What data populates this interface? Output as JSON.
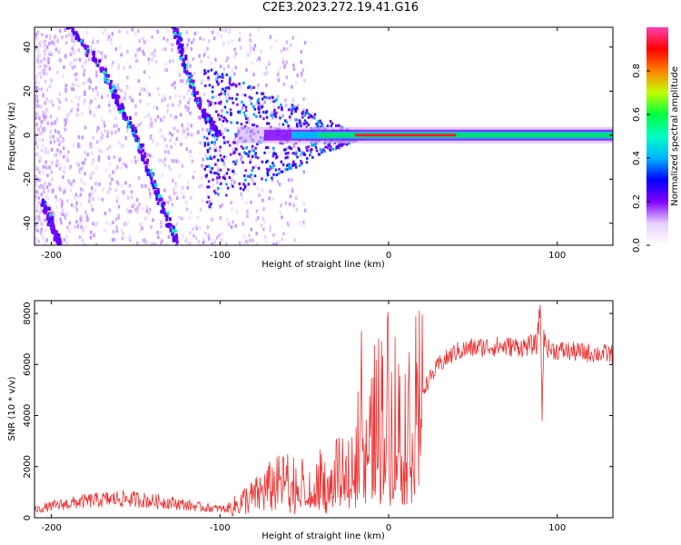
{
  "title": "C2E3.2023.272.19.41.G16",
  "chart_data": [
    {
      "type": "heatmap",
      "xlabel": "Height of straight line (km)",
      "ylabel": "Frequency (Hz)",
      "xlim": [
        -210,
        133
      ],
      "ylim": [
        -50,
        49
      ],
      "xticks": [
        -200,
        -100,
        0,
        100
      ],
      "yticks": [
        -40,
        -20,
        0,
        20,
        40
      ],
      "colorbar": {
        "label": "Normalized spectral amplitude",
        "range": [
          0,
          1
        ],
        "ticks": [
          "0.0",
          "0.2",
          "0.4",
          "0.6",
          "0.8"
        ],
        "colormap": [
          "#ffffff",
          "#e8d0ff",
          "#8000ff",
          "#0000ff",
          "#00b4ff",
          "#00ffc0",
          "#00ff40",
          "#c0ff00",
          "#ff8000",
          "#ff0000",
          "#ff40b0"
        ]
      },
      "features": [
        {
          "name": "carrier",
          "freq_hz": 0,
          "x_start": -90,
          "x_end": 133,
          "peak_amplitude": 0.9,
          "peak_x_range": [
            -20,
            40
          ]
        },
        {
          "name": "trace-1",
          "points": [
            [
              -190,
              50
            ],
            [
              -170,
              30
            ],
            [
              -160,
              15
            ],
            [
              -150,
              0
            ],
            [
              -140,
              -20
            ],
            [
              -130,
              -40
            ],
            [
              -125,
              -50
            ]
          ]
        },
        {
          "name": "trace-2",
          "points": [
            [
              -127,
              50
            ],
            [
              -120,
              30
            ],
            [
              -110,
              10
            ],
            [
              -100,
              0
            ]
          ]
        },
        {
          "name": "trace-3",
          "points": [
            [
              -205,
              -30
            ],
            [
              -200,
              -40
            ],
            [
              -195,
              -50
            ]
          ]
        }
      ]
    },
    {
      "type": "line",
      "xlabel": "Height of straight line (km)",
      "ylabel": "SNR (10 * v/v)",
      "xlim": [
        -210,
        133
      ],
      "ylim": [
        0,
        8500
      ],
      "xticks": [
        -200,
        -100,
        0,
        100
      ],
      "yticks": [
        0,
        2000,
        4000,
        6000,
        8000
      ],
      "color": "#ee3333",
      "series": [
        {
          "x": [
            -210,
            -200,
            -190,
            -180,
            -170,
            -160,
            -150,
            -140,
            -130,
            -120,
            -110,
            -100,
            -95,
            -90,
            -85,
            -80,
            -75,
            -70,
            -65,
            -60,
            -55,
            -50,
            -45,
            -40,
            -35,
            -30,
            -25,
            -20,
            -17,
            -16,
            -15,
            -10,
            -5,
            0,
            5,
            10,
            15,
            20,
            25,
            30,
            40,
            50,
            60,
            70,
            80,
            88,
            90,
            91,
            92,
            95,
            100,
            110,
            120,
            133
          ],
          "values": [
            300,
            450,
            550,
            650,
            700,
            750,
            720,
            650,
            600,
            500,
            400,
            350,
            350,
            500,
            700,
            800,
            1000,
            1200,
            1300,
            1400,
            1300,
            1200,
            800,
            1500,
            1000,
            1800,
            1500,
            2500,
            3000,
            7900,
            1500,
            3500,
            4000,
            4500,
            4000,
            3500,
            4200,
            5000,
            5500,
            6000,
            6500,
            6650,
            6700,
            6700,
            6700,
            6800,
            8400,
            4000,
            7000,
            6600,
            6550,
            6500,
            6450,
            6400
          ]
        }
      ]
    }
  ]
}
